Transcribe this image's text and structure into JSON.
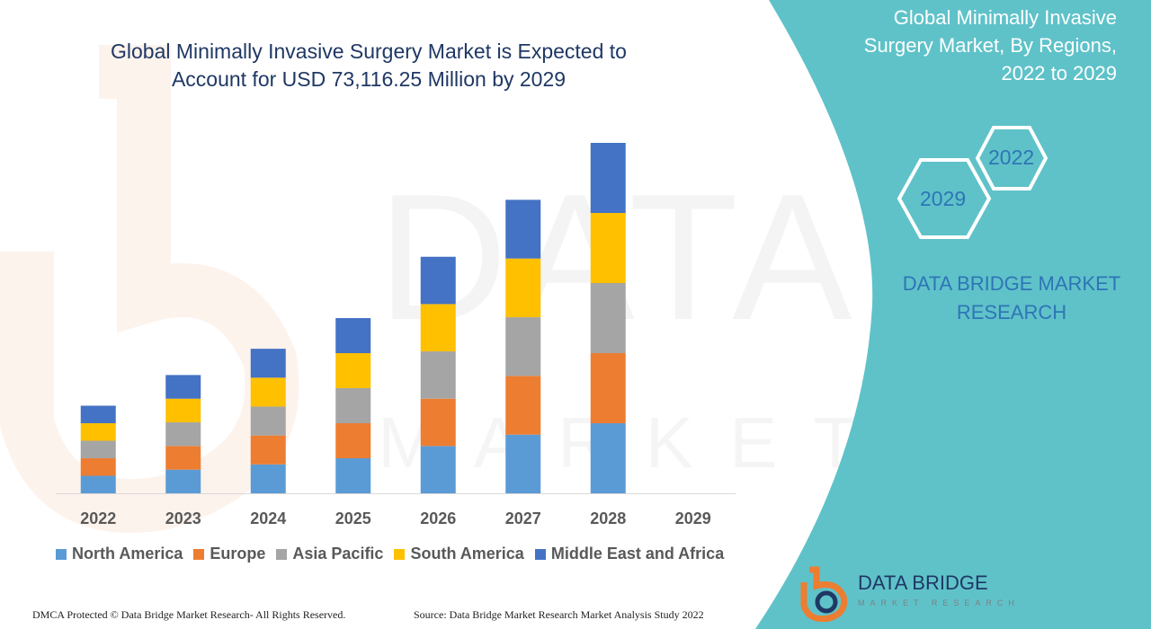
{
  "colors": {
    "panel": "#5fc2c9",
    "title": "#1f3864",
    "brand_blue": "#2e75b6"
  },
  "chart_data": {
    "type": "bar",
    "stacked": true,
    "title_lines": [
      "Global Minimally Invasive Surgery Market is Expected to",
      "Account for USD 73,116.25 Million by 2029"
    ],
    "categories": [
      "2022",
      "2023",
      "2024",
      "2025",
      "2026",
      "2027",
      "2028",
      "2029"
    ],
    "series": [
      {
        "name": "North America",
        "color": "#5b9bd5",
        "values": [
          1.0,
          1.35,
          1.65,
          2.0,
          2.7,
          3.35,
          4.0,
          null
        ]
      },
      {
        "name": "Europe",
        "color": "#ed7d31",
        "values": [
          1.0,
          1.35,
          1.65,
          2.0,
          2.7,
          3.35,
          4.0,
          null
        ]
      },
      {
        "name": "Asia Pacific",
        "color": "#a5a5a5",
        "values": [
          1.0,
          1.35,
          1.65,
          2.0,
          2.7,
          3.35,
          4.0,
          null
        ]
      },
      {
        "name": "South America",
        "color": "#ffc000",
        "values": [
          1.0,
          1.35,
          1.65,
          2.0,
          2.7,
          3.35,
          4.0,
          null
        ]
      },
      {
        "name": "Middle East and Africa",
        "color": "#4472c4",
        "values": [
          1.0,
          1.35,
          1.65,
          2.0,
          2.7,
          3.35,
          4.0,
          null
        ]
      }
    ],
    "ylim": [
      0,
      22
    ],
    "grid": false,
    "legend_position": "bottom"
  },
  "side_panel": {
    "title_lines": [
      "Global Minimally Invasive",
      "Surgery Market, By Regions,",
      "2022 to 2029"
    ],
    "hex_years": [
      "2022",
      "2029"
    ],
    "brand_lines": [
      "DATA BRIDGE MARKET",
      "RESEARCH"
    ]
  },
  "logo": {
    "name": "DATA BRIDGE",
    "tagline": "MARKET RESEARCH"
  },
  "watermark": {
    "line1": "DATA BRIDGE",
    "line2": "MARKET RESEARCH"
  },
  "footer": {
    "left": "DMCA Protected © Data Bridge Market Research- All Rights Reserved.",
    "right": "Source: Data Bridge Market Research Market Analysis Study 2022"
  }
}
